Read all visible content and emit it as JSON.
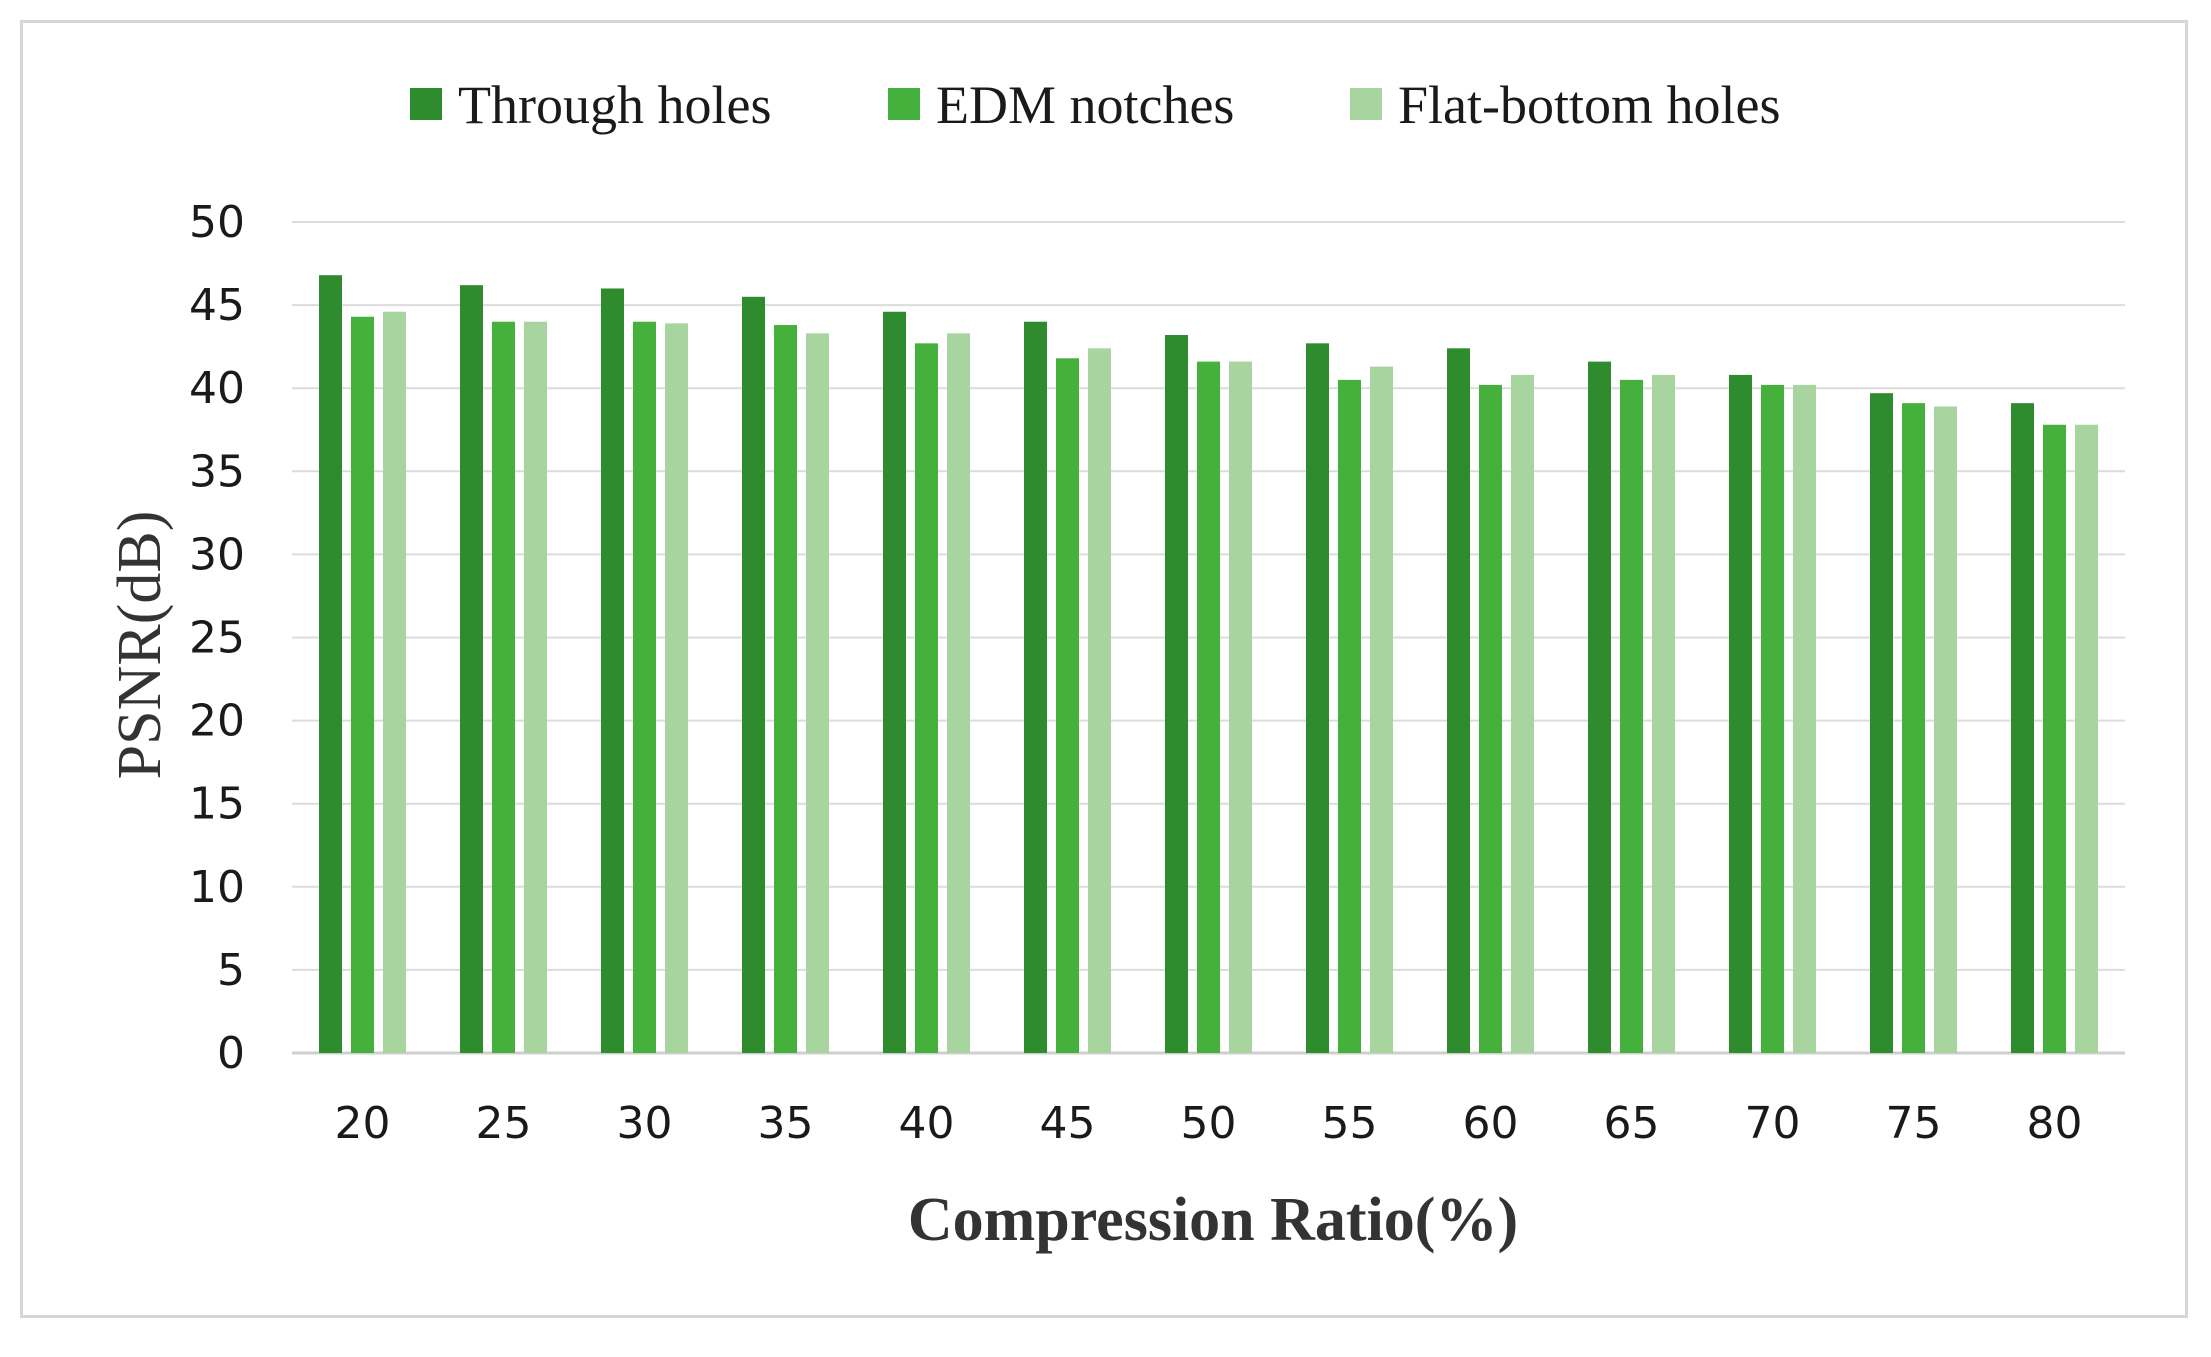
{
  "chart_data": {
    "type": "bar",
    "title": "",
    "xlabel": "Compression Ratio(%)",
    "ylabel": "PSNR(dB)",
    "ylim": [
      0,
      50
    ],
    "yticks": [
      0,
      5,
      10,
      15,
      20,
      25,
      30,
      35,
      40,
      45,
      50
    ],
    "grid": true,
    "legend_position": "top",
    "categories": [
      "20",
      "25",
      "30",
      "35",
      "40",
      "45",
      "50",
      "55",
      "60",
      "65",
      "70",
      "75",
      "80"
    ],
    "series": [
      {
        "name": "Through holes",
        "color": "#2e8b2e",
        "values": [
          46.8,
          46.2,
          46.0,
          45.5,
          44.6,
          44.0,
          43.2,
          42.7,
          42.4,
          41.6,
          40.8,
          39.7,
          39.1
        ]
      },
      {
        "name": "EDM notches",
        "color": "#46b03c",
        "values": [
          44.3,
          44.0,
          44.0,
          43.8,
          42.7,
          41.8,
          41.6,
          40.5,
          40.2,
          40.5,
          40.2,
          39.1,
          37.8
        ]
      },
      {
        "name": "Flat-bottom holes",
        "color": "#a8d4a0",
        "values": [
          44.6,
          44.0,
          43.9,
          43.3,
          43.3,
          42.4,
          41.6,
          41.3,
          40.8,
          40.8,
          40.2,
          38.9,
          37.8
        ]
      }
    ]
  }
}
